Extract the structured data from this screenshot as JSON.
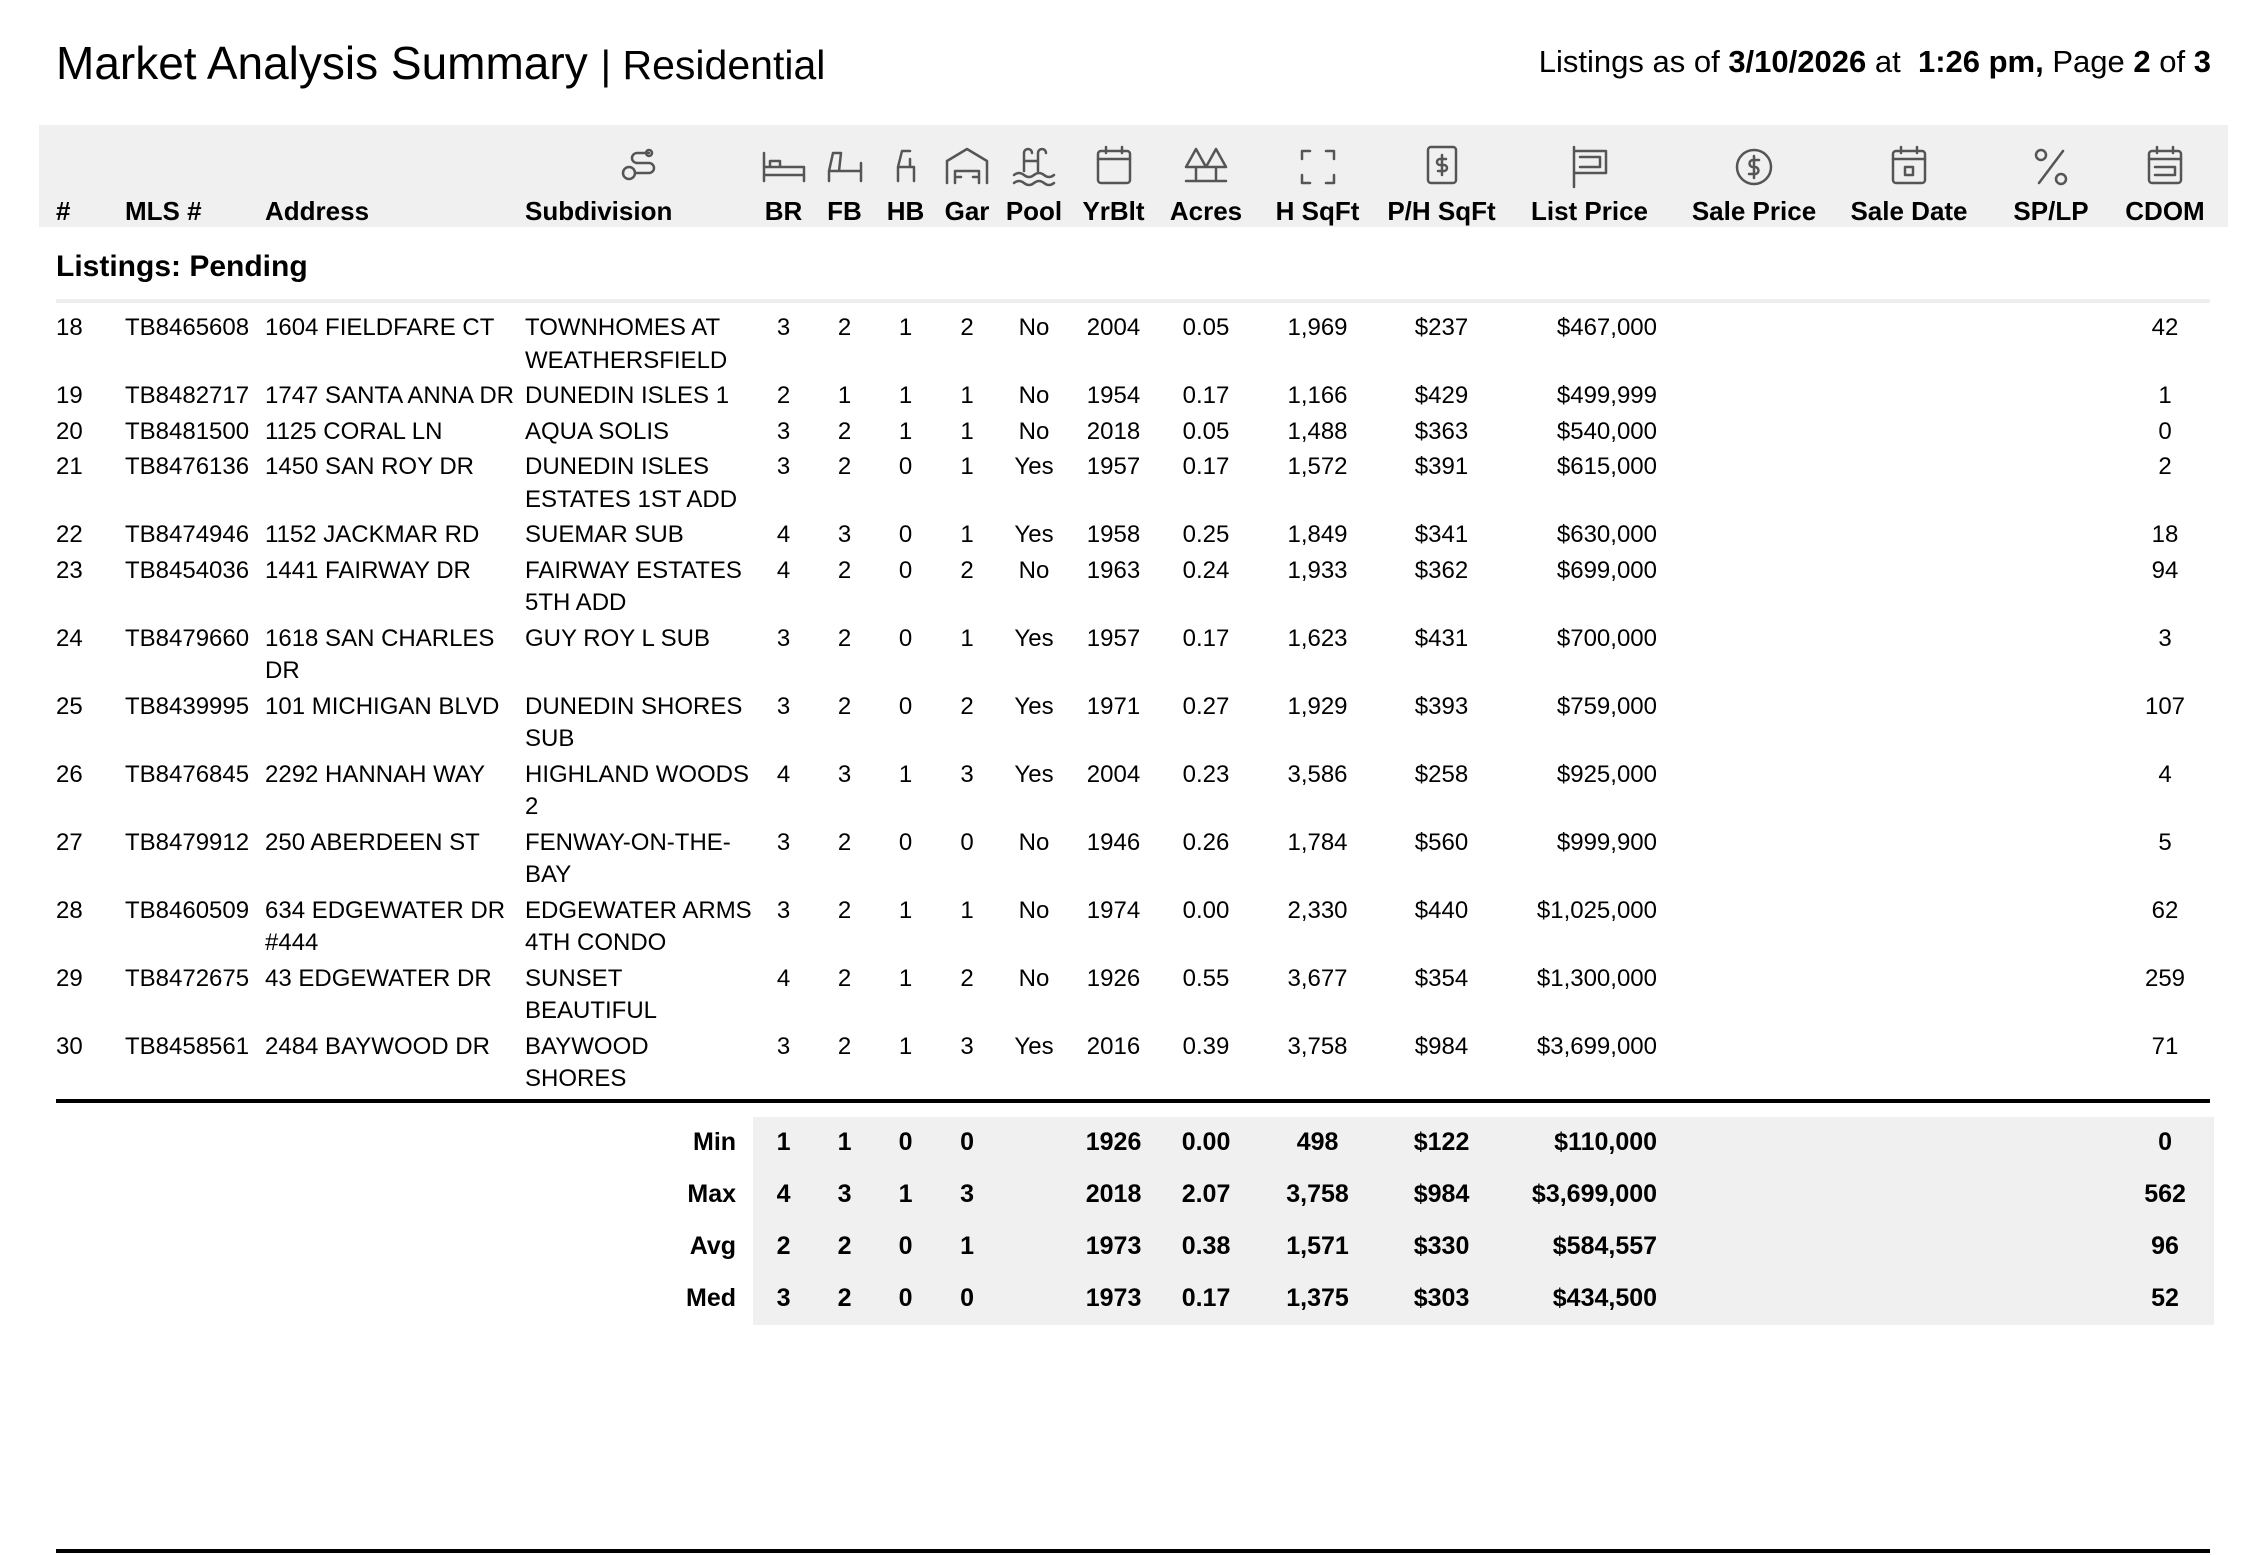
{
  "header": {
    "title": "Market Analysis Summary",
    "subtitle": "| Residential",
    "as_of_label": "Listings as of",
    "date": "3/10/2026",
    "at_label": "at",
    "time": "1:26 pm,",
    "page_label": "Page",
    "page": "2",
    "of_label": "of",
    "pages": "3"
  },
  "columns": [
    {
      "key": "num",
      "label": "#"
    },
    {
      "key": "mls",
      "label": "MLS #"
    },
    {
      "key": "address",
      "label": "Address"
    },
    {
      "key": "subdivision",
      "label": "Subdivision"
    },
    {
      "key": "br",
      "label": "BR"
    },
    {
      "key": "fb",
      "label": "FB"
    },
    {
      "key": "hb",
      "label": "HB"
    },
    {
      "key": "gar",
      "label": "Gar"
    },
    {
      "key": "pool",
      "label": "Pool"
    },
    {
      "key": "yrblt",
      "label": "YrBlt"
    },
    {
      "key": "acres",
      "label": "Acres"
    },
    {
      "key": "hsqft",
      "label": "H SqFt"
    },
    {
      "key": "phsqft",
      "label": "P/H SqFt"
    },
    {
      "key": "list_price",
      "label": "List Price"
    },
    {
      "key": "sale_price",
      "label": "Sale Price"
    },
    {
      "key": "sale_date",
      "label": "Sale Date"
    },
    {
      "key": "splp",
      "label": "SP/LP"
    },
    {
      "key": "cdom",
      "label": "CDOM"
    }
  ],
  "section": "Listings: Pending",
  "rows": [
    {
      "num": "18",
      "mls": "TB8465608",
      "address": "1604 FIELDFARE CT",
      "subdivision": "TOWNHOMES AT WEATHERSFIELD",
      "br": "3",
      "fb": "2",
      "hb": "1",
      "gar": "2",
      "pool": "No",
      "yrblt": "2004",
      "acres": "0.05",
      "hsqft": "1,969",
      "phsqft": "$237",
      "list_price": "$467,000",
      "cdom": "42"
    },
    {
      "num": "19",
      "mls": "TB8482717",
      "address": "1747 SANTA ANNA DR",
      "subdivision": "DUNEDIN ISLES 1",
      "br": "2",
      "fb": "1",
      "hb": "1",
      "gar": "1",
      "pool": "No",
      "yrblt": "1954",
      "acres": "0.17",
      "hsqft": "1,166",
      "phsqft": "$429",
      "list_price": "$499,999",
      "cdom": "1"
    },
    {
      "num": "20",
      "mls": "TB8481500",
      "address": "1125 CORAL LN",
      "subdivision": "AQUA SOLIS",
      "br": "3",
      "fb": "2",
      "hb": "1",
      "gar": "1",
      "pool": "No",
      "yrblt": "2018",
      "acres": "0.05",
      "hsqft": "1,488",
      "phsqft": "$363",
      "list_price": "$540,000",
      "cdom": "0"
    },
    {
      "num": "21",
      "mls": "TB8476136",
      "address": "1450 SAN ROY DR",
      "subdivision": "DUNEDIN ISLES ESTATES 1ST ADD",
      "br": "3",
      "fb": "2",
      "hb": "0",
      "gar": "1",
      "pool": "Yes",
      "yrblt": "1957",
      "acres": "0.17",
      "hsqft": "1,572",
      "phsqft": "$391",
      "list_price": "$615,000",
      "cdom": "2"
    },
    {
      "num": "22",
      "mls": "TB8474946",
      "address": "1152 JACKMAR RD",
      "subdivision": "SUEMAR SUB",
      "br": "4",
      "fb": "3",
      "hb": "0",
      "gar": "1",
      "pool": "Yes",
      "yrblt": "1958",
      "acres": "0.25",
      "hsqft": "1,849",
      "phsqft": "$341",
      "list_price": "$630,000",
      "cdom": "18"
    },
    {
      "num": "23",
      "mls": "TB8454036",
      "address": "1441 FAIRWAY DR",
      "subdivision": "FAIRWAY ESTATES 5TH ADD",
      "br": "4",
      "fb": "2",
      "hb": "0",
      "gar": "2",
      "pool": "No",
      "yrblt": "1963",
      "acres": "0.24",
      "hsqft": "1,933",
      "phsqft": "$362",
      "list_price": "$699,000",
      "cdom": "94"
    },
    {
      "num": "24",
      "mls": "TB8479660",
      "address": "1618 SAN CHARLES DR",
      "subdivision": "GUY ROY L SUB",
      "br": "3",
      "fb": "2",
      "hb": "0",
      "gar": "1",
      "pool": "Yes",
      "yrblt": "1957",
      "acres": "0.17",
      "hsqft": "1,623",
      "phsqft": "$431",
      "list_price": "$700,000",
      "cdom": "3"
    },
    {
      "num": "25",
      "mls": "TB8439995",
      "address": "101 MICHIGAN BLVD",
      "subdivision": "DUNEDIN SHORES SUB",
      "br": "3",
      "fb": "2",
      "hb": "0",
      "gar": "2",
      "pool": "Yes",
      "yrblt": "1971",
      "acres": "0.27",
      "hsqft": "1,929",
      "phsqft": "$393",
      "list_price": "$759,000",
      "cdom": "107"
    },
    {
      "num": "26",
      "mls": "TB8476845",
      "address": "2292 HANNAH WAY",
      "subdivision": "HIGHLAND WOODS 2",
      "br": "4",
      "fb": "3",
      "hb": "1",
      "gar": "3",
      "pool": "Yes",
      "yrblt": "2004",
      "acres": "0.23",
      "hsqft": "3,586",
      "phsqft": "$258",
      "list_price": "$925,000",
      "cdom": "4"
    },
    {
      "num": "27",
      "mls": "TB8479912",
      "address": "250 ABERDEEN ST",
      "subdivision": "FENWAY-ON-THE-BAY",
      "br": "3",
      "fb": "2",
      "hb": "0",
      "gar": "0",
      "pool": "No",
      "yrblt": "1946",
      "acres": "0.26",
      "hsqft": "1,784",
      "phsqft": "$560",
      "list_price": "$999,900",
      "cdom": "5"
    },
    {
      "num": "28",
      "mls": "TB8460509",
      "address": "634 EDGEWATER DR #444",
      "subdivision": "EDGEWATER ARMS 4TH CONDO",
      "br": "3",
      "fb": "2",
      "hb": "1",
      "gar": "1",
      "pool": "No",
      "yrblt": "1974",
      "acres": "0.00",
      "hsqft": "2,330",
      "phsqft": "$440",
      "list_price": "$1,025,000",
      "cdom": "62"
    },
    {
      "num": "29",
      "mls": "TB8472675",
      "address": "43 EDGEWATER DR",
      "subdivision": "SUNSET BEAUTIFUL",
      "br": "4",
      "fb": "2",
      "hb": "1",
      "gar": "2",
      "pool": "No",
      "yrblt": "1926",
      "acres": "0.55",
      "hsqft": "3,677",
      "phsqft": "$354",
      "list_price": "$1,300,000",
      "cdom": "259"
    },
    {
      "num": "30",
      "mls": "TB8458561",
      "address": "2484 BAYWOOD DR",
      "subdivision": "BAYWOOD SHORES",
      "br": "3",
      "fb": "2",
      "hb": "1",
      "gar": "3",
      "pool": "Yes",
      "yrblt": "2016",
      "acres": "0.39",
      "hsqft": "3,758",
      "phsqft": "$984",
      "list_price": "$3,699,000",
      "cdom": "71"
    }
  ],
  "summary": [
    {
      "label": "Min",
      "values": {
        "br": "1",
        "fb": "1",
        "hb": "0",
        "gar": "0",
        "yrblt": "1926",
        "acres": "0.00",
        "hsqft": "498",
        "phsqft": "$122",
        "list_price": "$110,000",
        "cdom": "0"
      }
    },
    {
      "label": "Max",
      "values": {
        "br": "4",
        "fb": "3",
        "hb": "1",
        "gar": "3",
        "yrblt": "2018",
        "acres": "2.07",
        "hsqft": "3,758",
        "phsqft": "$984",
        "list_price": "$3,699,000",
        "cdom": "562"
      }
    },
    {
      "label": "Avg",
      "values": {
        "br": "2",
        "fb": "2",
        "hb": "0",
        "gar": "1",
        "yrblt": "1973",
        "acres": "0.38",
        "hsqft": "1,571",
        "phsqft": "$330",
        "list_price": "$584,557",
        "cdom": "96"
      }
    },
    {
      "label": "Med",
      "values": {
        "br": "3",
        "fb": "2",
        "hb": "0",
        "gar": "0",
        "yrblt": "1973",
        "acres": "0.17",
        "hsqft": "1,375",
        "phsqft": "$303",
        "list_price": "$434,500",
        "cdom": "52"
      }
    }
  ]
}
